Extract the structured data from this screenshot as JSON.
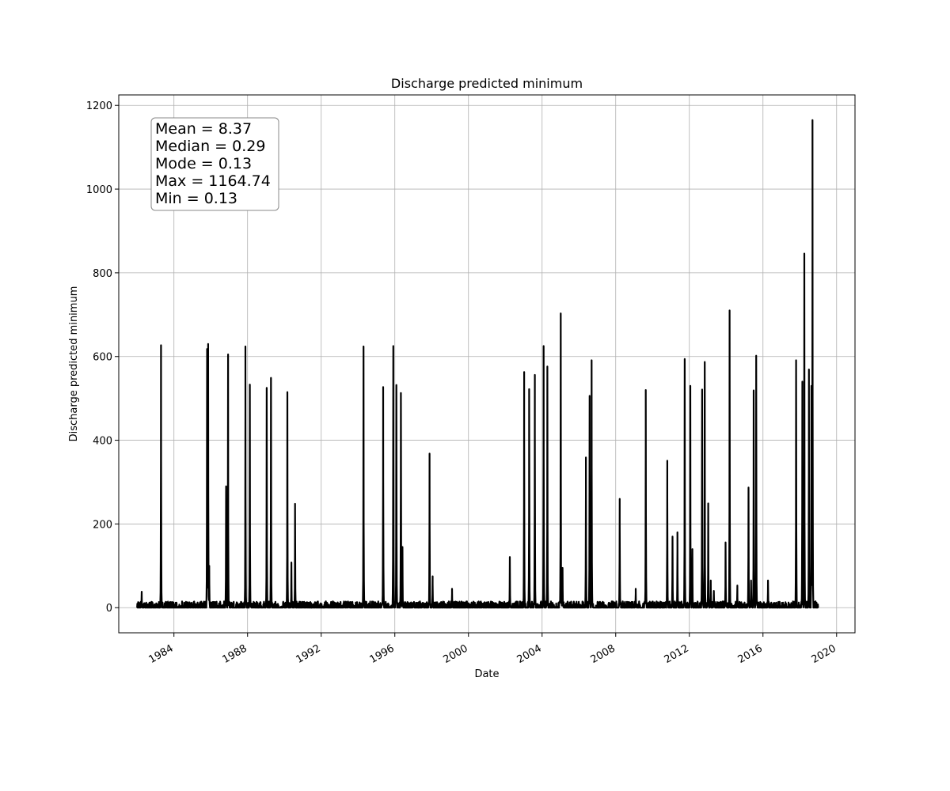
{
  "chart_data": {
    "type": "line",
    "title": "Discharge predicted minimum",
    "xlabel": "Date",
    "ylabel": "Discharge predicted minimum",
    "xlim": [
      "1981-01-01",
      "2020-12-31"
    ],
    "ylim": [
      -60,
      1225
    ],
    "grid": true,
    "x_ticks": [
      "1984",
      "1988",
      "1992",
      "1996",
      "2000",
      "2004",
      "2008",
      "2012",
      "2016",
      "2020"
    ],
    "y_ticks": [
      0,
      200,
      400,
      600,
      800,
      1000,
      1200
    ],
    "line_color": "#000000",
    "baseline": {
      "x_start": "1982-01-01",
      "x_end": "2018-12-31",
      "value": 0.13,
      "noise_max": 15
    },
    "peaks": [
      [
        "1982-04-01",
        38
      ],
      [
        "1983-04-20",
        627
      ],
      [
        "1985-10-20",
        618
      ],
      [
        "1985-11-10",
        630
      ],
      [
        "1985-12-01",
        100
      ],
      [
        "1986-11-01",
        290
      ],
      [
        "1986-12-10",
        605
      ],
      [
        "1987-11-20",
        624
      ],
      [
        "1988-02-15",
        533
      ],
      [
        "1989-01-15",
        525
      ],
      [
        "1989-04-10",
        549
      ],
      [
        "1990-03-01",
        515
      ],
      [
        "1990-05-20",
        108
      ],
      [
        "1990-08-01",
        248
      ],
      [
        "1994-04-20",
        624
      ],
      [
        "1995-05-15",
        527
      ],
      [
        "1995-12-01",
        625
      ],
      [
        "1996-02-01",
        532
      ],
      [
        "1996-05-01",
        513
      ],
      [
        "1996-06-01",
        145
      ],
      [
        "1997-11-20",
        368
      ],
      [
        "1998-01-20",
        75
      ],
      [
        "1999-02-10",
        45
      ],
      [
        "2002-04-01",
        121
      ],
      [
        "2003-01-10",
        563
      ],
      [
        "2003-04-20",
        522
      ],
      [
        "2003-08-10",
        556
      ],
      [
        "2004-02-01",
        625
      ],
      [
        "2004-04-15",
        576
      ],
      [
        "2005-01-05",
        703
      ],
      [
        "2005-02-10",
        95
      ],
      [
        "2006-05-20",
        359
      ],
      [
        "2006-08-01",
        506
      ],
      [
        "2006-09-10",
        591
      ],
      [
        "2008-03-20",
        260
      ],
      [
        "2009-02-01",
        45
      ],
      [
        "2009-08-20",
        520
      ],
      [
        "2010-10-20",
        351
      ],
      [
        "2011-02-01",
        170
      ],
      [
        "2011-05-10",
        180
      ],
      [
        "2011-10-01",
        594
      ],
      [
        "2012-01-20",
        530
      ],
      [
        "2012-03-01",
        140
      ],
      [
        "2012-09-10",
        521
      ],
      [
        "2012-11-01",
        587
      ],
      [
        "2013-01-10",
        249
      ],
      [
        "2013-03-01",
        65
      ],
      [
        "2013-05-01",
        40
      ],
      [
        "2013-12-20",
        156
      ],
      [
        "2014-03-10",
        710
      ],
      [
        "2014-08-10",
        53
      ],
      [
        "2015-03-20",
        287
      ],
      [
        "2015-05-10",
        65
      ],
      [
        "2015-07-01",
        519
      ],
      [
        "2015-08-20",
        602
      ],
      [
        "2016-04-10",
        65
      ],
      [
        "2017-10-20",
        591
      ],
      [
        "2018-02-20",
        540
      ],
      [
        "2018-04-01",
        846
      ],
      [
        "2018-07-01",
        569
      ],
      [
        "2018-08-20",
        530
      ],
      [
        "2018-09-10",
        1165
      ]
    ]
  },
  "stats_box": {
    "lines": [
      "Mean = 8.37",
      "Median = 0.29",
      "Mode = 0.13",
      "Max = 1164.74",
      "Min = 0.13"
    ]
  }
}
